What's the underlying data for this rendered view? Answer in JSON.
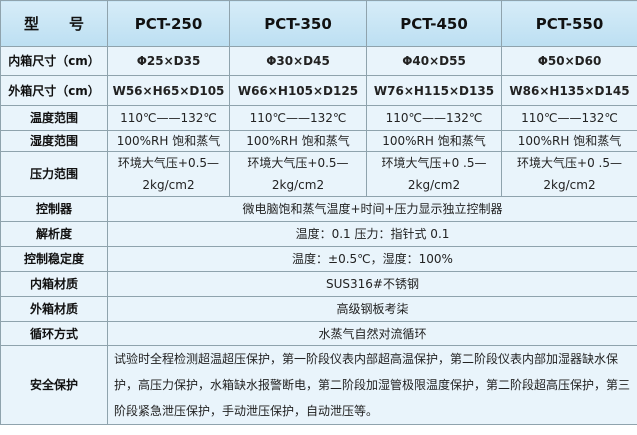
{
  "header": {
    "label": "型　　号",
    "models": [
      "PCT-250",
      "PCT-350",
      "PCT-450",
      "PCT-550"
    ]
  },
  "rows": [
    {
      "label": "内箱尺寸（cm）",
      "values": [
        "Φ25×D35",
        "Φ30×D45",
        "Φ40×D55",
        "Φ50×D60"
      ]
    },
    {
      "label": "外箱尺寸（cm）",
      "values": [
        "W56×H65×D105",
        "W66×H105×D125",
        "W76×H115×D135",
        "W86×H135×D145"
      ]
    },
    {
      "label": "温度范围",
      "values": [
        "110℃——132℃",
        "110℃——132℃",
        "110℃——132℃",
        "110℃——132℃"
      ]
    },
    {
      "label": "湿度范围",
      "values": [
        "100%RH 饱和蒸气",
        "100%RH 饱和蒸气",
        "100%RH 饱和蒸气",
        "100%RH 饱和蒸气"
      ]
    },
    {
      "label": "压力范围",
      "values": [
        "环境大气压+0.5—",
        "环境大气压+0.5—",
        "环境大气压+0 .5—",
        "环境大气压+0 .5—"
      ],
      "values2": [
        "2kg/cm2",
        "2kg/cm2",
        "2kg/cm2",
        "2kg/cm2"
      ]
    }
  ],
  "shared": [
    {
      "label": "控制器",
      "value": "微电脑饱和蒸气温度+时间+压力显示独立控制器"
    },
    {
      "label": "解析度",
      "value": "温度：0.1 压力：指针式 0.1"
    },
    {
      "label": "控制稳定度",
      "value": "温度：±0.5℃，湿度：100%"
    },
    {
      "label": "内箱材质",
      "value": "SUS316#不锈钢"
    },
    {
      "label": "外箱材质",
      "value": "高级钢板考柒"
    },
    {
      "label": "循环方式",
      "value": "水蒸气自然对流循环"
    },
    {
      "label": "安全保护",
      "value": "试验时全程检测超温超压保护，第一阶段仪表内部超高温保护，第二阶段仪表内部加湿器缺水保护，高压力保护，水箱缺水报警断电，第二阶段加湿管极限温度保护，第二阶段超高压保护，第三阶段紧急泄压保护，手动泄压保护，自动泄压等。"
    }
  ],
  "colors": {
    "background": "#e9f4fb",
    "header": "#bcdff2",
    "border": "#8fa3ad"
  }
}
